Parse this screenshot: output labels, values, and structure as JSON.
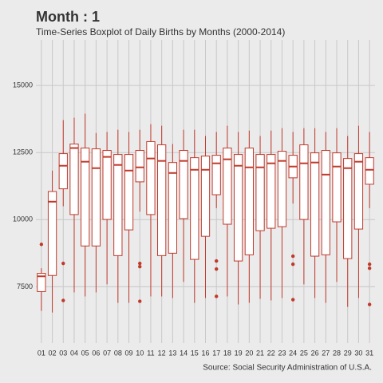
{
  "chart_data": {
    "type": "boxplot",
    "title": "Month : 1",
    "subtitle": "Time-Series Boxplot of Daily Births by Months (2000-2014)",
    "caption": "Source: Social Security Administration of U.S.A.",
    "color": "#c0392b",
    "grid": true,
    "ylim": [
      5400,
      16700
    ],
    "yticks": [
      7500,
      10000,
      12500,
      15000
    ],
    "categories": [
      "01",
      "02",
      "03",
      "04",
      "05",
      "06",
      "07",
      "08",
      "09",
      "10",
      "11",
      "12",
      "13",
      "14",
      "15",
      "16",
      "17",
      "18",
      "19",
      "20",
      "21",
      "22",
      "23",
      "24",
      "25",
      "26",
      "27",
      "28",
      "29",
      "30",
      "31"
    ],
    "boxes": [
      {
        "min": 6600,
        "q1": 7320,
        "median": 7890,
        "q3": 8000,
        "max": 8190,
        "outliers": [
          9080
        ]
      },
      {
        "min": 6540,
        "q1": 7920,
        "median": 10670,
        "q3": 11050,
        "max": 11830,
        "outliers": []
      },
      {
        "min": 10500,
        "q1": 11150,
        "median": 12010,
        "q3": 12460,
        "max": 13710,
        "outliers": [
          8370,
          6990
        ]
      },
      {
        "min": 7290,
        "q1": 10190,
        "median": 12670,
        "q3": 12820,
        "max": 13800,
        "outliers": []
      },
      {
        "min": 7140,
        "q1": 9020,
        "median": 12160,
        "q3": 12670,
        "max": 13950,
        "outliers": []
      },
      {
        "min": 7290,
        "q1": 9020,
        "median": 11920,
        "q3": 12640,
        "max": 13230,
        "outliers": []
      },
      {
        "min": 7590,
        "q1": 10010,
        "median": 12340,
        "q3": 12580,
        "max": 13270,
        "outliers": []
      },
      {
        "min": 6900,
        "q1": 8660,
        "median": 12040,
        "q3": 12430,
        "max": 13350,
        "outliers": []
      },
      {
        "min": 6900,
        "q1": 9620,
        "median": 11830,
        "q3": 12430,
        "max": 13270,
        "outliers": []
      },
      {
        "min": 10300,
        "q1": 11410,
        "median": 11950,
        "q3": 12580,
        "max": 13350,
        "outliers": [
          8370,
          8250,
          6960
        ]
      },
      {
        "min": 7140,
        "q1": 10190,
        "median": 12280,
        "q3": 12910,
        "max": 13560,
        "outliers": []
      },
      {
        "min": 7140,
        "q1": 8660,
        "median": 12190,
        "q3": 12790,
        "max": 13500,
        "outliers": []
      },
      {
        "min": 7080,
        "q1": 8750,
        "median": 11740,
        "q3": 12130,
        "max": 12820,
        "outliers": []
      },
      {
        "min": 7680,
        "q1": 10040,
        "median": 12190,
        "q3": 12580,
        "max": 13350,
        "outliers": []
      },
      {
        "min": 6900,
        "q1": 8520,
        "median": 11860,
        "q3": 12310,
        "max": 13350,
        "outliers": []
      },
      {
        "min": 7080,
        "q1": 9380,
        "median": 11860,
        "q3": 12370,
        "max": 13120,
        "outliers": []
      },
      {
        "min": 10430,
        "q1": 10930,
        "median": 12100,
        "q3": 12400,
        "max": 13270,
        "outliers": [
          8460,
          8160,
          7140
        ]
      },
      {
        "min": 7140,
        "q1": 9830,
        "median": 12250,
        "q3": 12670,
        "max": 13500,
        "outliers": []
      },
      {
        "min": 6840,
        "q1": 8460,
        "median": 12010,
        "q3": 12430,
        "max": 13270,
        "outliers": []
      },
      {
        "min": 6900,
        "q1": 8690,
        "median": 11950,
        "q3": 12670,
        "max": 13320,
        "outliers": []
      },
      {
        "min": 7050,
        "q1": 9590,
        "median": 11950,
        "q3": 12430,
        "max": 13120,
        "outliers": []
      },
      {
        "min": 6990,
        "q1": 9680,
        "median": 12100,
        "q3": 12430,
        "max": 13320,
        "outliers": []
      },
      {
        "min": 7080,
        "q1": 9740,
        "median": 12190,
        "q3": 12550,
        "max": 13410,
        "outliers": []
      },
      {
        "min": 10600,
        "q1": 11560,
        "median": 11980,
        "q3": 12400,
        "max": 13270,
        "outliers": [
          8640,
          8340,
          7020
        ]
      },
      {
        "min": 7590,
        "q1": 10010,
        "median": 12100,
        "q3": 12790,
        "max": 13410,
        "outliers": []
      },
      {
        "min": 7080,
        "q1": 8640,
        "median": 12130,
        "q3": 12490,
        "max": 13410,
        "outliers": []
      },
      {
        "min": 6900,
        "q1": 8690,
        "median": 11680,
        "q3": 12580,
        "max": 13270,
        "outliers": []
      },
      {
        "min": 7680,
        "q1": 9920,
        "median": 11980,
        "q3": 12490,
        "max": 13410,
        "outliers": []
      },
      {
        "min": 6750,
        "q1": 8550,
        "median": 11920,
        "q3": 12280,
        "max": 13120,
        "outliers": []
      },
      {
        "min": 7080,
        "q1": 9650,
        "median": 12160,
        "q3": 12460,
        "max": 13500,
        "outliers": []
      },
      {
        "min": 10430,
        "q1": 11320,
        "median": 11860,
        "q3": 12310,
        "max": 13270,
        "outliers": [
          8340,
          8190,
          6840
        ]
      }
    ]
  }
}
